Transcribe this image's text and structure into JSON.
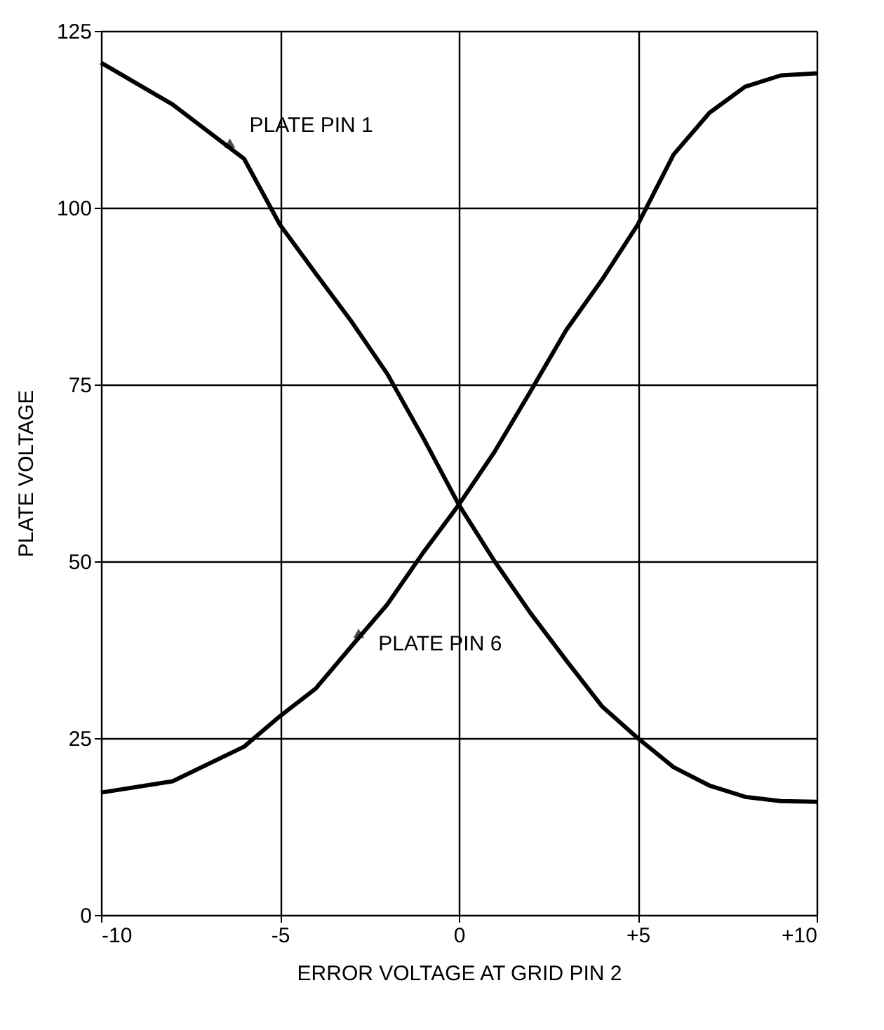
{
  "chart_data": {
    "type": "line",
    "xlabel": "ERROR VOLTAGE AT GRID PIN 2",
    "ylabel": "PLATE VOLTAGE",
    "x": [
      -10,
      -8,
      -6,
      -5,
      -4,
      -3,
      -2,
      -1,
      0,
      1,
      2,
      3,
      4,
      5,
      6,
      7,
      8,
      9,
      10
    ],
    "series": [
      {
        "color": "#000000",
        "values": [
          120.5,
          114.6,
          106.9,
          97.6,
          90.7,
          83.9,
          76.5,
          67.5,
          58,
          50,
          42.7,
          36,
          29.5,
          25,
          20.9,
          18.3,
          16.7,
          16.1,
          16
        ]
      },
      {
        "color": "#000000",
        "values": [
          17.3,
          18.9,
          23.8,
          28.1,
          32,
          38,
          43.9,
          51.2,
          58,
          65.5,
          74,
          82.7,
          89.8,
          97.6,
          107.5,
          113.4,
          117.1,
          118.7,
          119
        ]
      }
    ],
    "xlim": [
      -10,
      10
    ],
    "ylim": [
      0,
      125
    ],
    "xticks": [
      -10,
      -5,
      0,
      {
        "value": 5,
        "label": "+5"
      },
      {
        "value": 10,
        "label": "+10"
      }
    ],
    "yticks": [
      0,
      25,
      50,
      75,
      100,
      125
    ],
    "grid": true,
    "legend": false,
    "marker": "none",
    "line_style": "solid",
    "annotations": [
      {
        "text": "PLATE PIN 1",
        "x": -6.4,
        "y": 108.9
      },
      {
        "text": "PLATE PIN 6",
        "x": -2.8,
        "y": 39.6
      }
    ]
  }
}
